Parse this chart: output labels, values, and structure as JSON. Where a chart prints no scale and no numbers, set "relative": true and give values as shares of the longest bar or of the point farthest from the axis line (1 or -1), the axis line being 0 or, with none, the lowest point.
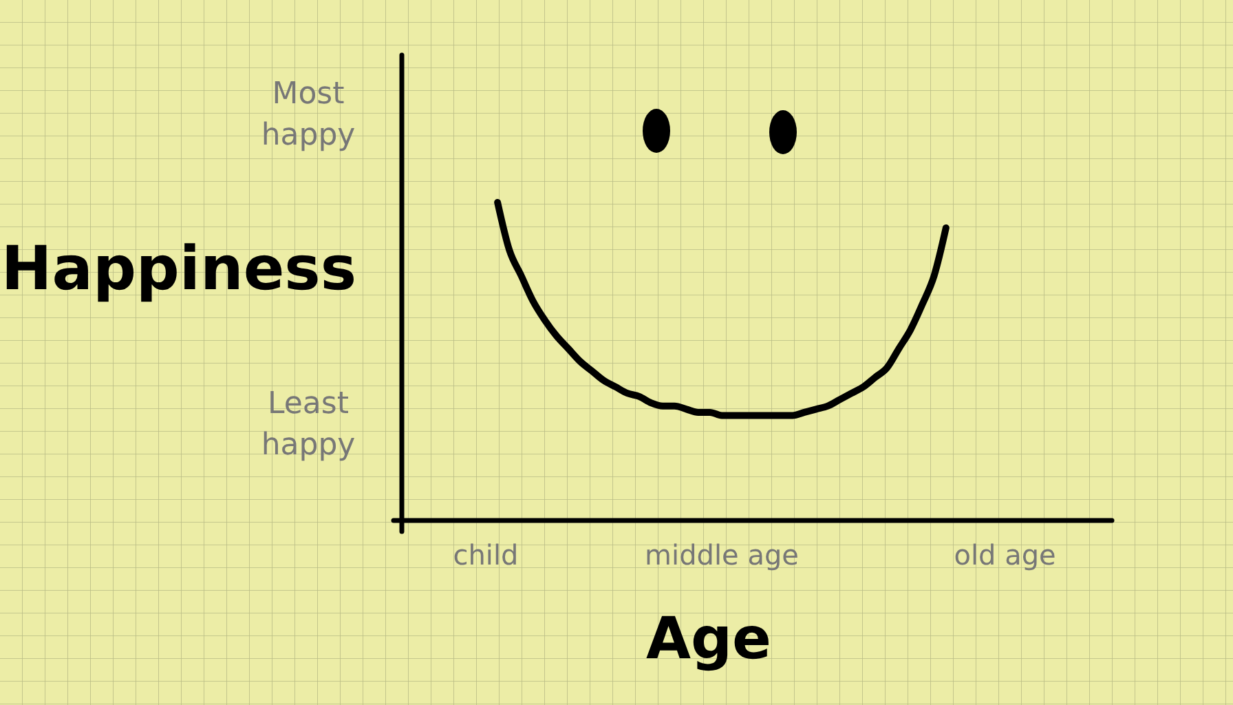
{
  "chart_data": {
    "type": "line",
    "xlabel": "Age",
    "ylabel": "Happiness",
    "relative": true,
    "categories": [
      null,
      null,
      null,
      null,
      "child",
      null,
      null,
      null,
      null,
      null,
      null,
      null,
      null,
      null,
      null,
      null,
      null,
      null,
      null,
      null,
      null,
      null,
      null,
      null,
      "middle age",
      null,
      null,
      null,
      null,
      null,
      null,
      null,
      null,
      null,
      null,
      null,
      null,
      null,
      null,
      null,
      null,
      null,
      null,
      null,
      null,
      null,
      null,
      null,
      "old age",
      null,
      null,
      null,
      null,
      null,
      null,
      null,
      null
    ],
    "series": [
      {
        "color": "#000000",
        "values": [
          null,
          null,
          null,
          null,
          null,
          1,
          0.85,
          0.77,
          0.69,
          0.63,
          0.58,
          0.54,
          0.5,
          0.47,
          0.44,
          0.42,
          0.4,
          0.39,
          0.37,
          0.36,
          0.36,
          0.35,
          0.34,
          0.34,
          0.33,
          0.33,
          0.33,
          0.33,
          0.33,
          0.33,
          0.33,
          0.34,
          0.35,
          0.36,
          0.38,
          0.4,
          0.42,
          0.45,
          0.48,
          0.54,
          0.6,
          0.68,
          0.77,
          0.92,
          null,
          null,
          null,
          null,
          null,
          null,
          null,
          null,
          null,
          null,
          null,
          null,
          null
        ]
      }
    ],
    "annotations": [
      "Most happy",
      "Least happy"
    ],
    "grid": false,
    "marker": "none",
    "line_style": "solid"
  }
}
